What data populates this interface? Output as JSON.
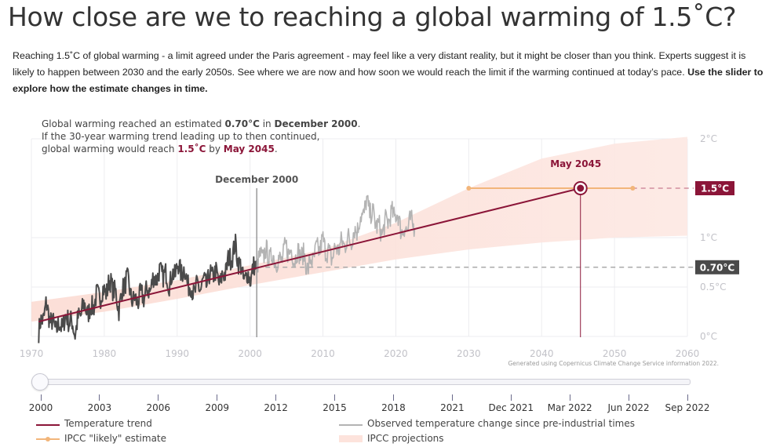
{
  "title": "How close are we to reaching a global warming of 1.5˚C?",
  "intro": {
    "text": "Reaching 1.5˚C of global warming - a limit agreed under the Paris agreement - may feel like a very distant reality, but it might be closer than you think. Experts suggest it is likely to happen between 2030 and the early 2050s. See where we are now and how soon we would reach the limit if the warming continued at today’s pace. ",
    "bold_text": "Use the slider to explore how the estimate changes in time."
  },
  "colors": {
    "trend": "#8b1538",
    "ipcc_estimate": "#f2b57a",
    "observed_dark": "#4a4a4a",
    "observed_light": "#b3b3b3",
    "projection_band": "#fde8e3",
    "label_dark": "#4a4a4a",
    "grid": "#ececf0"
  },
  "annotation": {
    "line1_pre": "Global warming reached an estimated ",
    "line1_value": "0.70°C",
    "line1_mid": " in ",
    "line1_date": "December 2000",
    "line1_post": ".",
    "line2": "If the 30-year warming trend leading up to then continued,",
    "line3_pre": "global warming would reach ",
    "line3_value": "1.5˚C",
    "line3_mid": " by ",
    "line3_date": "May 2045",
    "line3_post": "."
  },
  "credit": "Generated using Copernicus Climate Change Service information 2022.",
  "chart_data": {
    "type": "line",
    "x_range": [
      1970,
      2060
    ],
    "y_range": [
      0,
      2
    ],
    "x_ticks": [
      1970,
      1980,
      1990,
      2000,
      2010,
      2020,
      2030,
      2040,
      2050,
      2060
    ],
    "x_tick_labels": [
      "1970",
      "1980",
      "1990",
      "2000",
      "2010",
      "2020",
      "2030",
      "2040",
      "2050",
      "2060"
    ],
    "y_ticks": [
      0,
      0.5,
      1,
      2
    ],
    "y_tick_labels": [
      "0°C",
      "0.5°C",
      "1°C",
      "2°C"
    ],
    "current_date_label": "December 2000",
    "current_date_x": 2000.92,
    "current_value": 0.7,
    "current_value_label": "0.70°C",
    "target_value": 1.5,
    "target_value_label": "1.5°C",
    "reach_date_label": "May 2045",
    "reach_date_x": 2045.33,
    "trend": {
      "name": "Temperature trend",
      "x": [
        1971,
        2045.33
      ],
      "y": [
        0.15,
        1.5
      ]
    },
    "ipcc_estimate": {
      "name": "IPCC \"likely\" estimate",
      "start": 2030,
      "end": 2052.5,
      "value": 1.5
    },
    "projection_band": {
      "name": "IPCC projections",
      "x": [
        1970,
        1980,
        1990,
        2000,
        2010,
        2020,
        2030,
        2040,
        2050,
        2060
      ],
      "lower": [
        0.15,
        0.25,
        0.38,
        0.52,
        0.65,
        0.78,
        0.88,
        0.95,
        1.0,
        1.02
      ],
      "upper": [
        0.35,
        0.45,
        0.57,
        0.72,
        0.88,
        1.15,
        1.5,
        1.8,
        1.95,
        2.02
      ]
    },
    "observed": {
      "name": "Observed temperature change since pre-industrial times",
      "x": [
        1971,
        1972,
        1973,
        1974,
        1975,
        1976,
        1977,
        1978,
        1979,
        1980,
        1981,
        1982,
        1983,
        1984,
        1985,
        1986,
        1987,
        1988,
        1989,
        1990,
        1991,
        1992,
        1993,
        1994,
        1995,
        1996,
        1997,
        1998,
        1999,
        2000,
        2001,
        2002,
        2003,
        2004,
        2005,
        2006,
        2007,
        2008,
        2009,
        2010,
        2011,
        2012,
        2013,
        2014,
        2015,
        2016,
        2017,
        2018,
        2019,
        2020,
        2021,
        2022
      ],
      "y": [
        0.05,
        0.3,
        0.1,
        0.1,
        0.2,
        0.05,
        0.3,
        0.25,
        0.4,
        0.45,
        0.55,
        0.3,
        0.6,
        0.35,
        0.4,
        0.45,
        0.6,
        0.65,
        0.55,
        0.7,
        0.65,
        0.45,
        0.5,
        0.55,
        0.65,
        0.55,
        0.75,
        0.9,
        0.6,
        0.6,
        0.75,
        0.85,
        0.8,
        0.75,
        0.9,
        0.8,
        0.85,
        0.7,
        0.85,
        0.95,
        0.8,
        0.9,
        0.95,
        1.0,
        1.15,
        1.35,
        1.2,
        1.05,
        1.2,
        1.25,
        1.05,
        1.15
      ]
    }
  },
  "slider": {
    "ticks": [
      "2000",
      "2003",
      "2006",
      "2009",
      "2012",
      "2015",
      "2018",
      "2021",
      "Dec 2021",
      "Mar 2022",
      "Jun 2022",
      "Sep 2022"
    ],
    "value_label": "2000"
  },
  "legend": {
    "trend": "Temperature trend",
    "observed": "Observed temperature change since pre-industrial times",
    "ipcc_estimate": "IPCC \"likely\" estimate",
    "projections": "IPCC projections"
  }
}
